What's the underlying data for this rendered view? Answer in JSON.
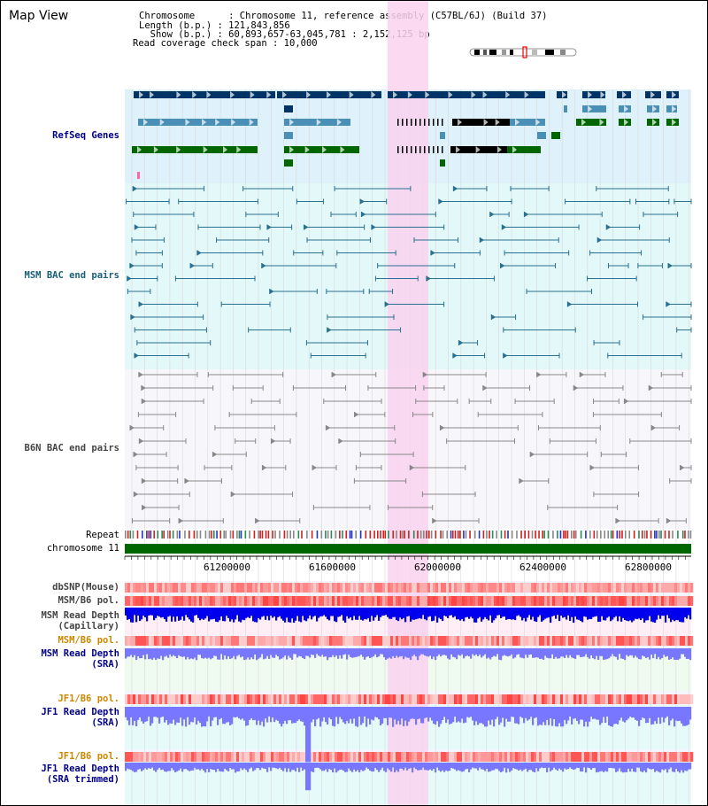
{
  "app": {
    "title": "Map View"
  },
  "info": {
    "line1": "Chromosome      : Chromosome 11, reference assembly (C57BL/6J) (Build 37)",
    "line2": "Length (b.p.) : 121,843,856",
    "line3": "  Show (b.p.) : 60,893,657-63,045,781 : 2,152,125 bp",
    "line4": "Read coverage check span : 10,000"
  },
  "tracks": {
    "refseq": "RefSeq Genes",
    "msm_bac": "MSM BAC end pairs",
    "b6n_bac": "B6N BAC end pairs",
    "repeat": "Repeat",
    "chromosome": "chromosome 11",
    "dbsnp": "dbSNP(Mouse)",
    "msm_b6_pol_1": "MSM/B6 pol.",
    "msm_depth_cap_1": "MSM Read Depth",
    "msm_depth_cap_2": "(Capillary)",
    "msm_b6_pol_2": "MSM/B6 pol.",
    "msm_depth_sra_1": "MSM Read Depth",
    "msm_depth_sra_2": "(SRA)",
    "jf1_b6_pol_1": "JF1/B6 pol.",
    "jf1_depth_sra_1": "JF1 Read Depth",
    "jf1_depth_sra_2": "(SRA)",
    "jf1_b6_pol_2": "JF1/B6 pol.",
    "jf1_depth_trim_1": "JF1 Read Depth",
    "jf1_depth_trim_2": "(SRA trimmed)"
  },
  "axis": {
    "ticks": [
      "61200000",
      "61600000",
      "62000000",
      "62400000",
      "62800000"
    ]
  },
  "colors": {
    "refseq_bg": "#dff1fa",
    "msm_bg": "#e3f8f8",
    "b6n_bg": "#f7f7fb",
    "highlight": "#f9d2ee",
    "dark_gene": "#003366",
    "mid_gene": "#4a8fb5",
    "green_gene": "#006600",
    "msm_line": "#2a7090",
    "b6n_line": "#888888",
    "chrom": "#006600",
    "depth_blue": "#0000ee",
    "depth_light": "#7777ff",
    "label_blue": "#000088",
    "label_orange": "#cc8800"
  }
}
